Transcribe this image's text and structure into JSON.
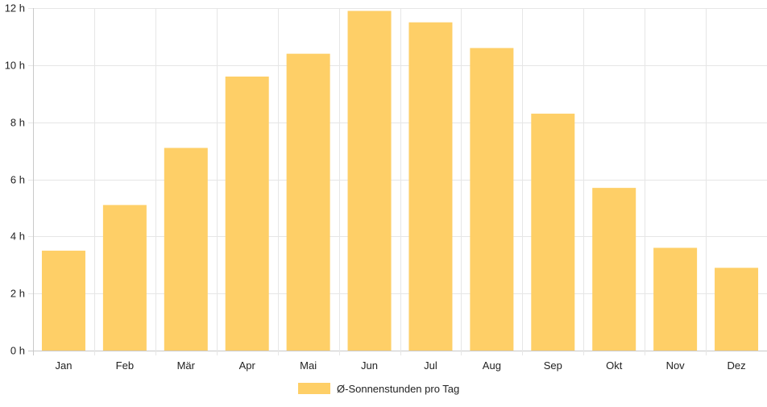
{
  "chart_data": {
    "type": "bar",
    "title": "",
    "xlabel": "",
    "ylabel": "",
    "categories": [
      "Jan",
      "Feb",
      "Mär",
      "Apr",
      "Mai",
      "Jun",
      "Jul",
      "Aug",
      "Sep",
      "Okt",
      "Nov",
      "Dez"
    ],
    "series": [
      {
        "name": "Ø-Sonnenstunden pro Tag",
        "values": [
          3.5,
          5.1,
          7.1,
          9.6,
          10.4,
          11.9,
          11.5,
          10.6,
          8.3,
          5.7,
          3.6,
          2.9
        ],
        "color": "#fecf67"
      }
    ],
    "ylim": [
      0,
      12
    ],
    "y_ticks": [
      0,
      2,
      4,
      6,
      8,
      10,
      12
    ],
    "y_tick_suffix": " h",
    "grid": true,
    "legend": "bottom-center"
  }
}
